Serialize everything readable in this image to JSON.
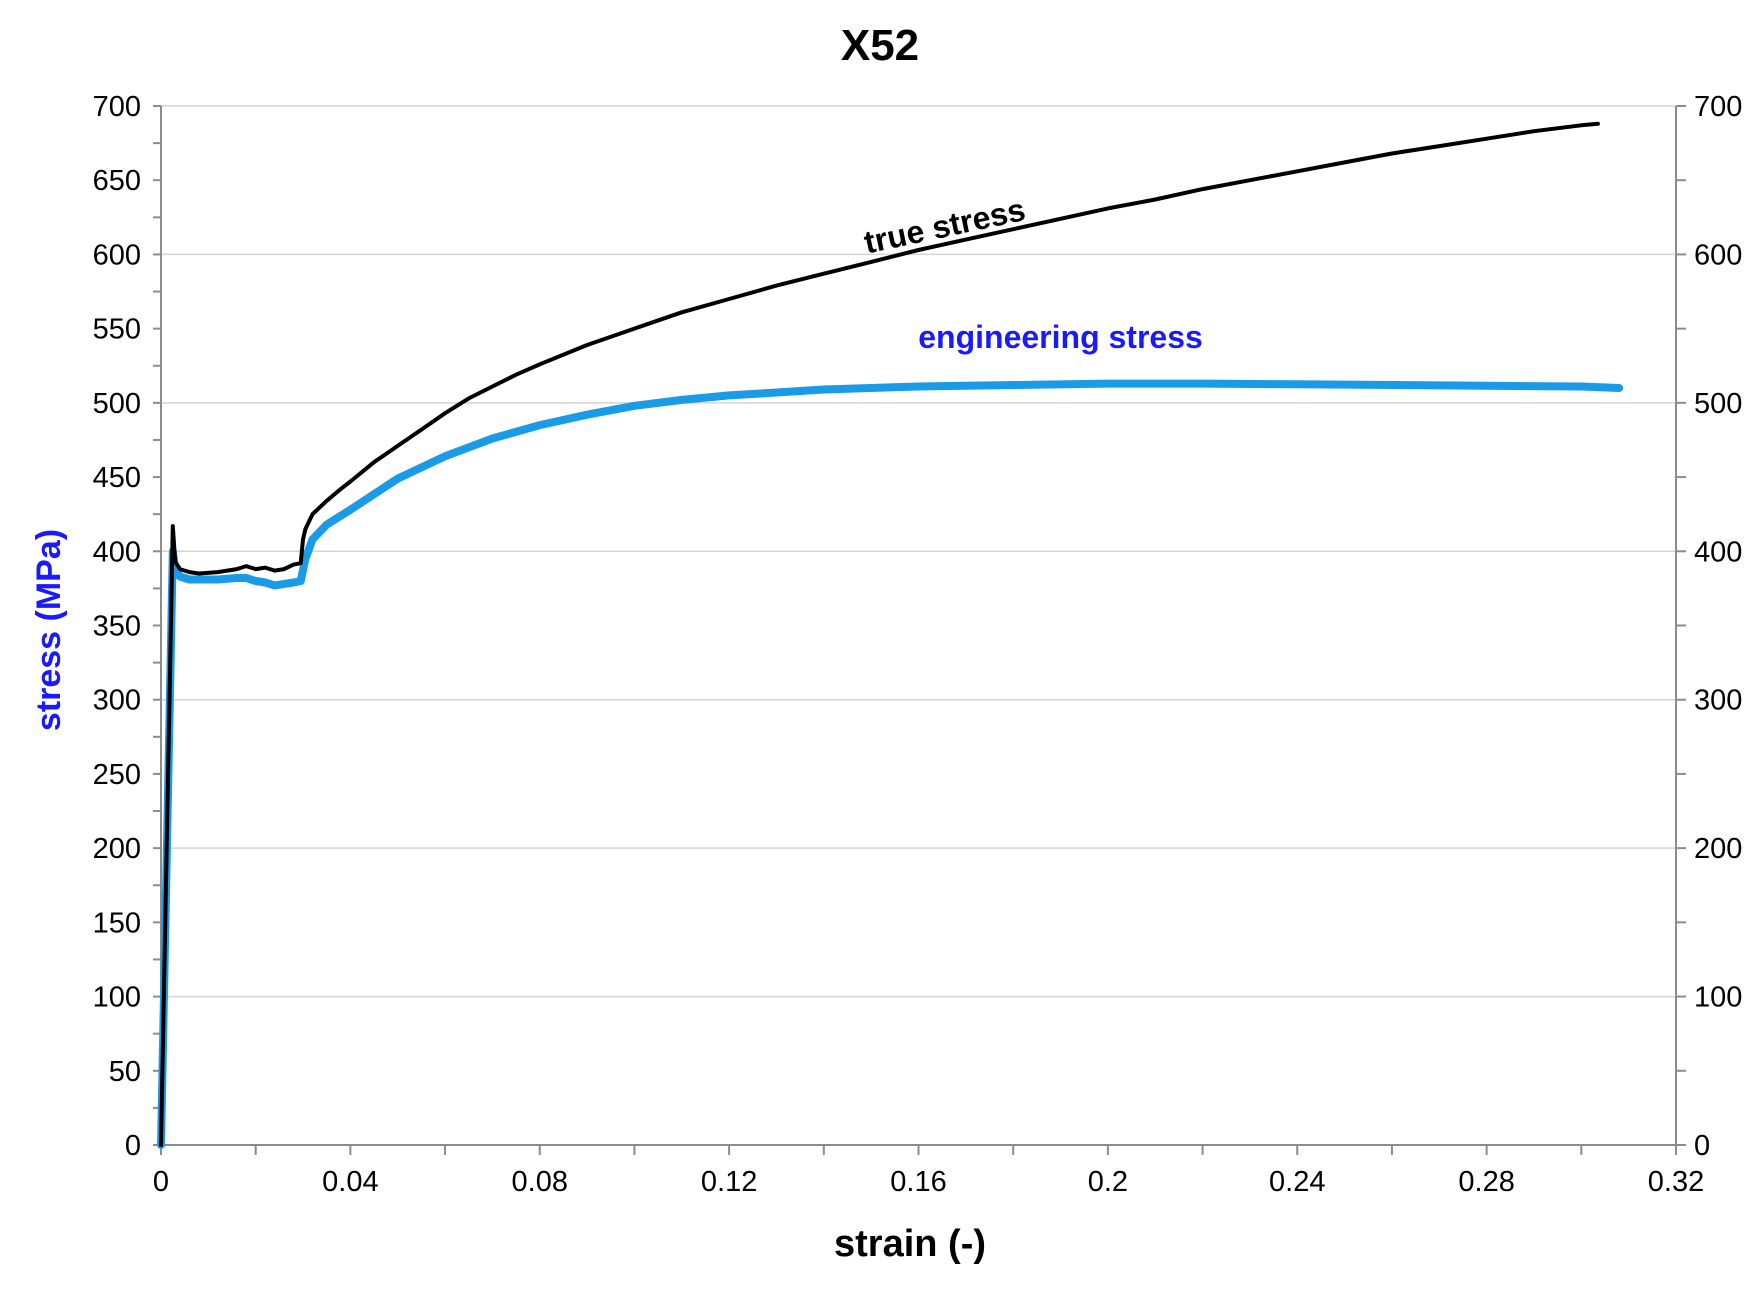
{
  "chart_data": {
    "type": "line",
    "title": "X52",
    "xlabel": "strain (-)",
    "ylabel": "stress (MPa)",
    "xlim": [
      0,
      0.32
    ],
    "ylim": [
      0,
      700
    ],
    "x_ticks": [
      "0",
      "0.04",
      "0.08",
      "0.12",
      "0.16",
      "0.2",
      "0.24",
      "0.28",
      "0.32"
    ],
    "y_ticks_left": [
      "0",
      "50",
      "100",
      "150",
      "200",
      "250",
      "300",
      "350",
      "400",
      "450",
      "500",
      "550",
      "600",
      "650",
      "700"
    ],
    "y_ticks_right": [
      "0",
      "100",
      "200",
      "300",
      "400",
      "500",
      "600",
      "700"
    ],
    "grid": true,
    "colors": {
      "true_stress": "#000000",
      "engineering_stress": "#1a9be8",
      "ylabel": "#1a1aff",
      "engineering_label": "#1a1aff"
    },
    "series": [
      {
        "name": "true stress",
        "color": "#000000",
        "x": [
          0,
          0.0025,
          0.003,
          0.004,
          0.006,
          0.008,
          0.012,
          0.016,
          0.018,
          0.02,
          0.022,
          0.024,
          0.026,
          0.028,
          0.0295,
          0.03,
          0.0305,
          0.032,
          0.035,
          0.038,
          0.04,
          0.045,
          0.05,
          0.055,
          0.06,
          0.065,
          0.07,
          0.075,
          0.08,
          0.09,
          0.1,
          0.11,
          0.12,
          0.13,
          0.14,
          0.15,
          0.16,
          0.17,
          0.18,
          0.19,
          0.2,
          0.21,
          0.22,
          0.23,
          0.24,
          0.25,
          0.26,
          0.27,
          0.28,
          0.29,
          0.3,
          0.3035
        ],
        "y": [
          0,
          417,
          393,
          388,
          386,
          385,
          386,
          388,
          390,
          388,
          389,
          387,
          388,
          391,
          392,
          408,
          415,
          425,
          434,
          442,
          447,
          460,
          471,
          482,
          493,
          503,
          511,
          519,
          526,
          539,
          550,
          561,
          570,
          579,
          587,
          595,
          603,
          610,
          617,
          624,
          631,
          637,
          644,
          650,
          656,
          662,
          668,
          673,
          678,
          683,
          687,
          688
        ]
      },
      {
        "name": "engineering stress",
        "color": "#1a9be8",
        "x": [
          0,
          0.0025,
          0.003,
          0.004,
          0.006,
          0.008,
          0.012,
          0.016,
          0.018,
          0.02,
          0.022,
          0.024,
          0.026,
          0.028,
          0.0295,
          0.0305,
          0.032,
          0.035,
          0.04,
          0.05,
          0.06,
          0.07,
          0.08,
          0.09,
          0.1,
          0.11,
          0.12,
          0.13,
          0.14,
          0.16,
          0.18,
          0.2,
          0.22,
          0.24,
          0.26,
          0.28,
          0.3,
          0.308
        ],
        "y": [
          0,
          400,
          388,
          383,
          381,
          381,
          381,
          382,
          382,
          380,
          379,
          377,
          378,
          379,
          380,
          395,
          408,
          418,
          428,
          449,
          464,
          476,
          485,
          492,
          498,
          502,
          505,
          507,
          509,
          511,
          512,
          513,
          513,
          512.5,
          512,
          511.5,
          511,
          510
        ]
      }
    ],
    "annotations": [
      {
        "text": "true stress",
        "x": 0.166,
        "y": 612,
        "color": "#000000",
        "rotate": true
      },
      {
        "text": "engineering stress",
        "x": 0.19,
        "y": 537,
        "color": "#1a1aff",
        "rotate": false
      }
    ]
  }
}
